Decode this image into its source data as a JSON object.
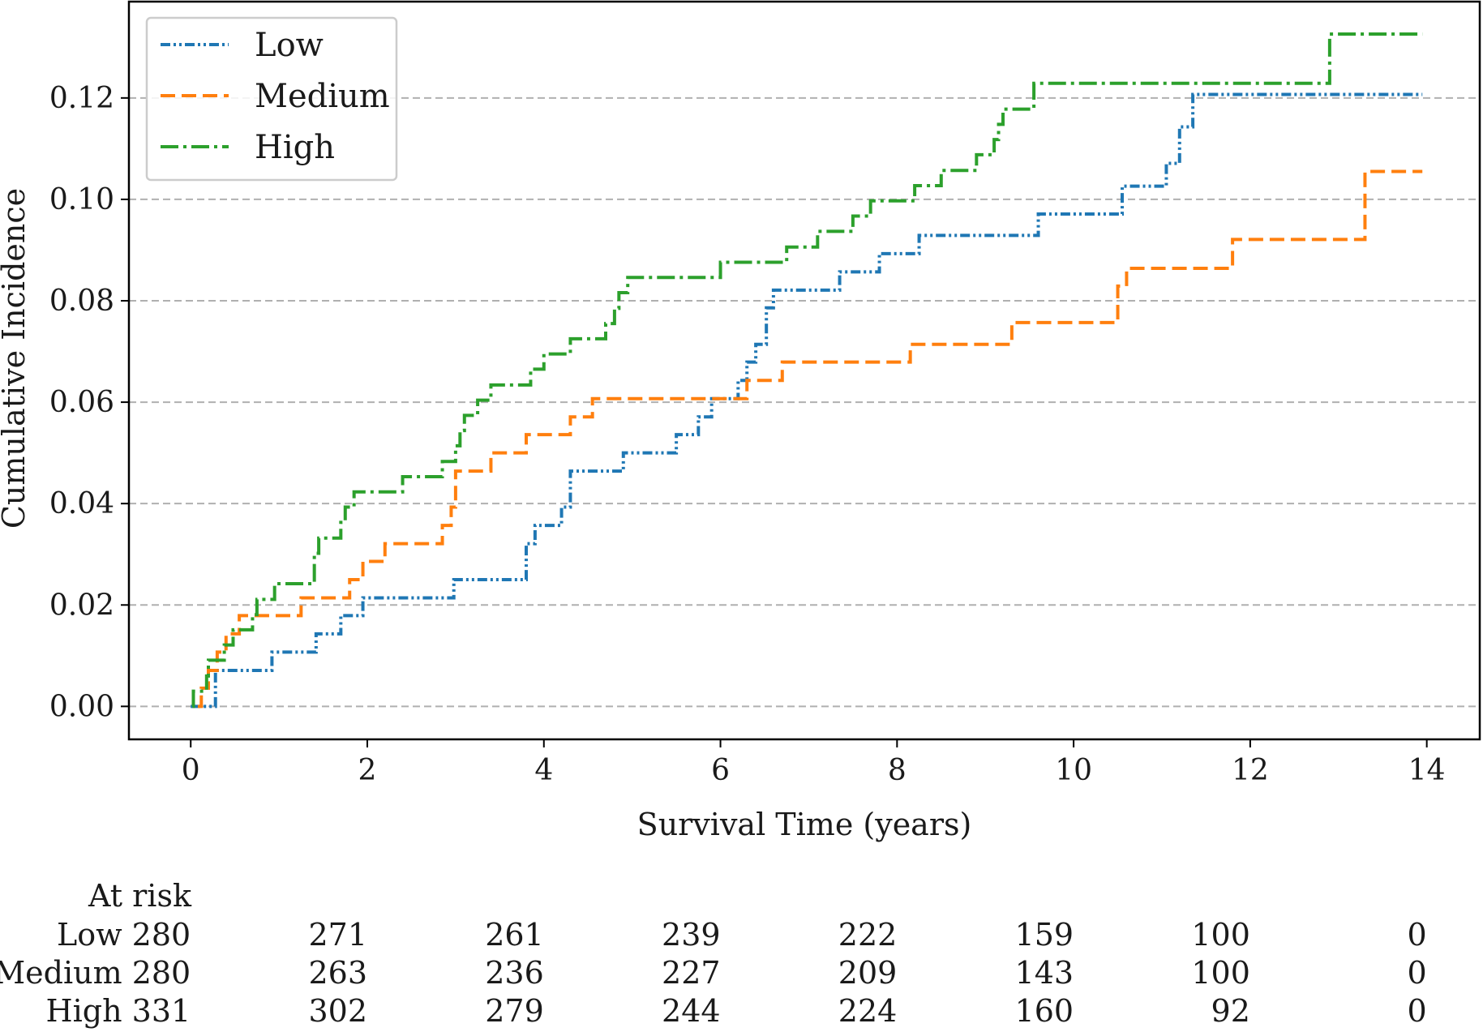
{
  "chart_data": {
    "type": "line",
    "title": "",
    "xlabel": "Survival Time (years)",
    "ylabel": "Cumulative Incidence",
    "xlim": [
      -0.7,
      14.6
    ],
    "ylim": [
      -0.0065,
      0.139
    ],
    "xticks": [
      0,
      2,
      4,
      6,
      8,
      10,
      12,
      14
    ],
    "xtick_labels": [
      "0",
      "2",
      "4",
      "6",
      "8",
      "10",
      "12",
      "14"
    ],
    "yticks": [
      0.0,
      0.02,
      0.04,
      0.06,
      0.08,
      0.1,
      0.12
    ],
    "ytick_labels": [
      "0.00",
      "0.02",
      "0.04",
      "0.06",
      "0.08",
      "0.10",
      "0.12"
    ],
    "grid": "horizontal dashed",
    "legend_position": "top-left",
    "series": [
      {
        "name": "Low",
        "color": "#1f77b4",
        "linestyle": "dash-dot-dot",
        "steps": [
          [
            0,
            0
          ],
          [
            0.28,
            0.0071
          ],
          [
            0.92,
            0.0107
          ],
          [
            1.42,
            0.0143
          ],
          [
            1.7,
            0.0179
          ],
          [
            1.95,
            0.0214
          ],
          [
            2.98,
            0.025
          ],
          [
            3.8,
            0.0321
          ],
          [
            3.9,
            0.0357
          ],
          [
            4.2,
            0.0393
          ],
          [
            4.3,
            0.0464
          ],
          [
            4.9,
            0.05
          ],
          [
            5.5,
            0.0536
          ],
          [
            5.75,
            0.0571
          ],
          [
            5.9,
            0.0607
          ],
          [
            6.2,
            0.0643
          ],
          [
            6.3,
            0.0679
          ],
          [
            6.4,
            0.0714
          ],
          [
            6.52,
            0.0786
          ],
          [
            6.6,
            0.0821
          ],
          [
            7.35,
            0.0857
          ],
          [
            7.8,
            0.0893
          ],
          [
            8.25,
            0.0929
          ],
          [
            9.6,
            0.0971
          ],
          [
            10.55,
            0.1026
          ],
          [
            11.05,
            0.1071
          ],
          [
            11.2,
            0.1143
          ],
          [
            11.35,
            0.1207
          ],
          [
            13.95,
            0.1207
          ]
        ]
      },
      {
        "name": "Medium",
        "color": "#ff7f0e",
        "linestyle": "dashed",
        "steps": [
          [
            0.08,
            0
          ],
          [
            0.12,
            0.0036
          ],
          [
            0.2,
            0.0071
          ],
          [
            0.3,
            0.0107
          ],
          [
            0.4,
            0.0143
          ],
          [
            0.55,
            0.0179
          ],
          [
            1.25,
            0.0214
          ],
          [
            1.8,
            0.025
          ],
          [
            1.95,
            0.0286
          ],
          [
            2.2,
            0.0321
          ],
          [
            2.85,
            0.0357
          ],
          [
            2.95,
            0.0393
          ],
          [
            3.0,
            0.0464
          ],
          [
            3.4,
            0.05
          ],
          [
            3.8,
            0.0536
          ],
          [
            4.3,
            0.0571
          ],
          [
            4.55,
            0.0607
          ],
          [
            6.3,
            0.0643
          ],
          [
            6.7,
            0.0679
          ],
          [
            8.15,
            0.0714
          ],
          [
            9.3,
            0.0757
          ],
          [
            10.5,
            0.0829
          ],
          [
            10.6,
            0.0864
          ],
          [
            11.8,
            0.0921
          ],
          [
            13.3,
            0.1055
          ],
          [
            13.95,
            0.1055
          ]
        ]
      },
      {
        "name": "High",
        "color": "#2ca02c",
        "linestyle": "dash-dot",
        "steps": [
          [
            0.02,
            0
          ],
          [
            0.03,
            0.003
          ],
          [
            0.18,
            0.006
          ],
          [
            0.2,
            0.0091
          ],
          [
            0.38,
            0.0121
          ],
          [
            0.48,
            0.0151
          ],
          [
            0.7,
            0.0181
          ],
          [
            0.75,
            0.0211
          ],
          [
            0.95,
            0.0242
          ],
          [
            1.4,
            0.0302
          ],
          [
            1.45,
            0.0332
          ],
          [
            1.7,
            0.0363
          ],
          [
            1.75,
            0.0393
          ],
          [
            1.85,
            0.0423
          ],
          [
            2.4,
            0.0453
          ],
          [
            2.85,
            0.0483
          ],
          [
            3.0,
            0.0514
          ],
          [
            3.05,
            0.0544
          ],
          [
            3.1,
            0.0574
          ],
          [
            3.25,
            0.0604
          ],
          [
            3.4,
            0.0634
          ],
          [
            3.85,
            0.0665
          ],
          [
            4.0,
            0.0695
          ],
          [
            4.3,
            0.0725
          ],
          [
            4.7,
            0.0755
          ],
          [
            4.8,
            0.0785
          ],
          [
            4.85,
            0.0816
          ],
          [
            4.95,
            0.0846
          ],
          [
            6.0,
            0.0876
          ],
          [
            6.75,
            0.0906
          ],
          [
            7.1,
            0.0937
          ],
          [
            7.5,
            0.0967
          ],
          [
            7.7,
            0.0997
          ],
          [
            8.2,
            0.1027
          ],
          [
            8.5,
            0.1057
          ],
          [
            8.9,
            0.1088
          ],
          [
            9.1,
            0.1118
          ],
          [
            9.15,
            0.1148
          ],
          [
            9.2,
            0.1178
          ],
          [
            9.55,
            0.1229
          ],
          [
            12.9,
            0.1326
          ],
          [
            13.95,
            0.1326
          ]
        ]
      }
    ],
    "at_risk": {
      "header": "At risk",
      "rows": [
        {
          "name": "Low",
          "values": [
            "280",
            "271",
            "261",
            "239",
            "222",
            "159",
            "100",
            "0"
          ]
        },
        {
          "name": "Medium",
          "values": [
            "280",
            "263",
            "236",
            "227",
            "209",
            "143",
            "100",
            "0"
          ]
        },
        {
          "name": "High",
          "values": [
            "331",
            "302",
            "279",
            "244",
            "224",
            "160",
            "92",
            "0"
          ]
        }
      ]
    }
  }
}
